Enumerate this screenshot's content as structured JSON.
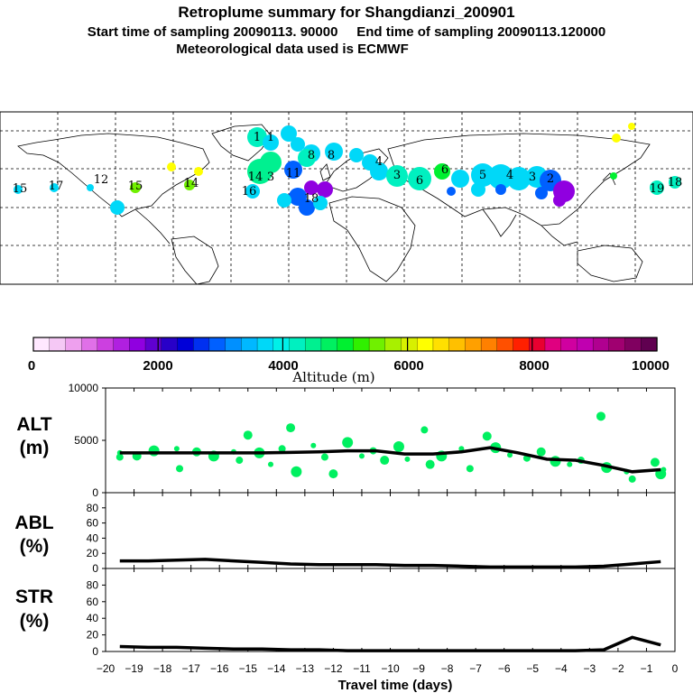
{
  "title": {
    "line1": "Retroplume summary for Shangdianzi_200901",
    "line2": "Start time of sampling 20090113. 90000     End time of sampling 20090113.120000",
    "line3": "Meteorological data used is ECMWF"
  },
  "colorbar": {
    "label": "Altitude (m)",
    "tick_labels": [
      "0",
      "2000",
      "4000",
      "6000",
      "8000",
      "10000"
    ],
    "colors": [
      "#ffe8ff",
      "#f5c8f5",
      "#eea0ee",
      "#e070e8",
      "#cc40e0",
      "#b020e0",
      "#9000e0",
      "#6000d0",
      "#2800c8",
      "#0000d8",
      "#0030f0",
      "#0060ff",
      "#0090ff",
      "#00b8ff",
      "#00d8f8",
      "#00f0e8",
      "#00f0c0",
      "#00f090",
      "#00f060",
      "#00f030",
      "#30f000",
      "#70f000",
      "#a8f000",
      "#d8f000",
      "#ffff00",
      "#ffe000",
      "#ffc000",
      "#ffa000",
      "#ff8000",
      "#ff5000",
      "#ff2000",
      "#e80030",
      "#e00080",
      "#d000a0",
      "#c000b0",
      "#b00090",
      "#a00070",
      "#800060",
      "#600050"
    ]
  },
  "map": {
    "labels": [
      "1",
      "1",
      "14",
      "3",
      "11",
      "18",
      "8",
      "8",
      "4",
      "3",
      "6",
      "6",
      "5",
      "4",
      "3",
      "2",
      "19",
      "18",
      "16",
      "17",
      "15",
      "12",
      "15",
      "14"
    ],
    "colors": [
      "#00f0c0",
      "#00d8f8",
      "#00f090",
      "#0060ff",
      "#9000e0",
      "#00f030",
      "#70f000",
      "#ffff00"
    ]
  },
  "chart_data": [
    {
      "type": "line",
      "panel": "ALT",
      "ylabel": "ALT\n(m)",
      "ylim": [
        0,
        10000
      ],
      "yticks": [
        "10000",
        "5000",
        "0"
      ],
      "x": [
        -19.5,
        -18.5,
        -17.5,
        -16.5,
        -15.5,
        -14.5,
        -13.5,
        -12.5,
        -11.5,
        -10.5,
        -9.5,
        -8.5,
        -7.5,
        -6.5,
        -5.5,
        -4.5,
        -3.5,
        -2.5,
        -1.5,
        -0.5
      ],
      "values": [
        3800,
        3800,
        3800,
        3800,
        3800,
        3800,
        3850,
        3900,
        4000,
        4000,
        3700,
        3700,
        3900,
        4300,
        3800,
        3200,
        3100,
        2600,
        2000,
        2200
      ],
      "scatter": [
        {
          "x": -19.5,
          "y": 3800
        },
        {
          "x": -19.5,
          "y": 3400
        },
        {
          "x": -18.9,
          "y": 3500
        },
        {
          "x": -18.3,
          "y": 4000
        },
        {
          "x": -17.5,
          "y": 4200
        },
        {
          "x": -17.4,
          "y": 2300
        },
        {
          "x": -16.8,
          "y": 3900
        },
        {
          "x": -16.2,
          "y": 3500
        },
        {
          "x": -15.5,
          "y": 3900
        },
        {
          "x": -15.3,
          "y": 3100
        },
        {
          "x": -15,
          "y": 5500
        },
        {
          "x": -14.6,
          "y": 3800
        },
        {
          "x": -14.2,
          "y": 2700
        },
        {
          "x": -13.8,
          "y": 4200
        },
        {
          "x": -13.5,
          "y": 6200
        },
        {
          "x": -13.3,
          "y": 2000
        },
        {
          "x": -12.7,
          "y": 4500
        },
        {
          "x": -12.3,
          "y": 3400
        },
        {
          "x": -12,
          "y": 1800
        },
        {
          "x": -11.5,
          "y": 4800
        },
        {
          "x": -11,
          "y": 3500
        },
        {
          "x": -10.6,
          "y": 4000
        },
        {
          "x": -10.2,
          "y": 3100
        },
        {
          "x": -9.7,
          "y": 4400
        },
        {
          "x": -9.4,
          "y": 3200
        },
        {
          "x": -8.8,
          "y": 6000
        },
        {
          "x": -8.6,
          "y": 2700
        },
        {
          "x": -8.2,
          "y": 3500
        },
        {
          "x": -7.5,
          "y": 4200
        },
        {
          "x": -7.2,
          "y": 2300
        },
        {
          "x": -6.6,
          "y": 5400
        },
        {
          "x": -6.3,
          "y": 4300
        },
        {
          "x": -5.8,
          "y": 3600
        },
        {
          "x": -5.2,
          "y": 3300
        },
        {
          "x": -4.7,
          "y": 3900
        },
        {
          "x": -4.2,
          "y": 3000
        },
        {
          "x": -3.7,
          "y": 2700
        },
        {
          "x": -3.3,
          "y": 3100
        },
        {
          "x": -2.6,
          "y": 7300
        },
        {
          "x": -2.4,
          "y": 2400
        },
        {
          "x": -1.7,
          "y": 2000
        },
        {
          "x": -1.5,
          "y": 1300
        },
        {
          "x": -0.7,
          "y": 2900
        },
        {
          "x": -0.5,
          "y": 1800
        },
        {
          "x": -0.4,
          "y": 2200
        }
      ],
      "scatter_color": "#00f060"
    },
    {
      "type": "line",
      "panel": "ABL",
      "ylabel": "ABL\n(%)",
      "ylim": [
        0,
        100
      ],
      "yticks": [
        "80",
        "60",
        "40",
        "20",
        "0"
      ],
      "x": [
        -19.5,
        -18.5,
        -17.5,
        -16.5,
        -15.5,
        -14.5,
        -13.5,
        -12.5,
        -11.5,
        -10.5,
        -9.5,
        -8.5,
        -7.5,
        -6.5,
        -5.5,
        -4.5,
        -3.5,
        -2.5,
        -1.5,
        -0.5
      ],
      "values": [
        10,
        10,
        11,
        12,
        10,
        8,
        6,
        5,
        5,
        5,
        4,
        4,
        3,
        2,
        2,
        2,
        2,
        3,
        6,
        9
      ]
    },
    {
      "type": "line",
      "panel": "STR",
      "ylabel": "STR\n(%)",
      "ylim": [
        0,
        100
      ],
      "yticks": [
        "80",
        "60",
        "40",
        "20",
        "0"
      ],
      "x": [
        -19.5,
        -18.5,
        -17.5,
        -16.5,
        -15.5,
        -14.5,
        -13.5,
        -12.5,
        -11.5,
        -10.5,
        -9.5,
        -8.5,
        -7.5,
        -6.5,
        -5.5,
        -4.5,
        -3.5,
        -2.5,
        -1.5,
        -0.5
      ],
      "values": [
        6,
        5,
        5,
        4,
        3,
        3,
        2,
        2,
        1,
        1,
        1,
        1,
        1,
        1,
        1,
        1,
        1,
        2,
        17,
        8
      ]
    }
  ],
  "xaxis": {
    "label": "Travel time (days)",
    "tick_labels": [
      "−20",
      "−19",
      "−18",
      "−17",
      "−16",
      "−15",
      "−14",
      "−13",
      "−12",
      "−11",
      "−10",
      "−9",
      "−8",
      "−7",
      "−6",
      "−5",
      "−4",
      "−3",
      "−2",
      "−1",
      "0"
    ],
    "xlim": [
      -20,
      0
    ]
  }
}
